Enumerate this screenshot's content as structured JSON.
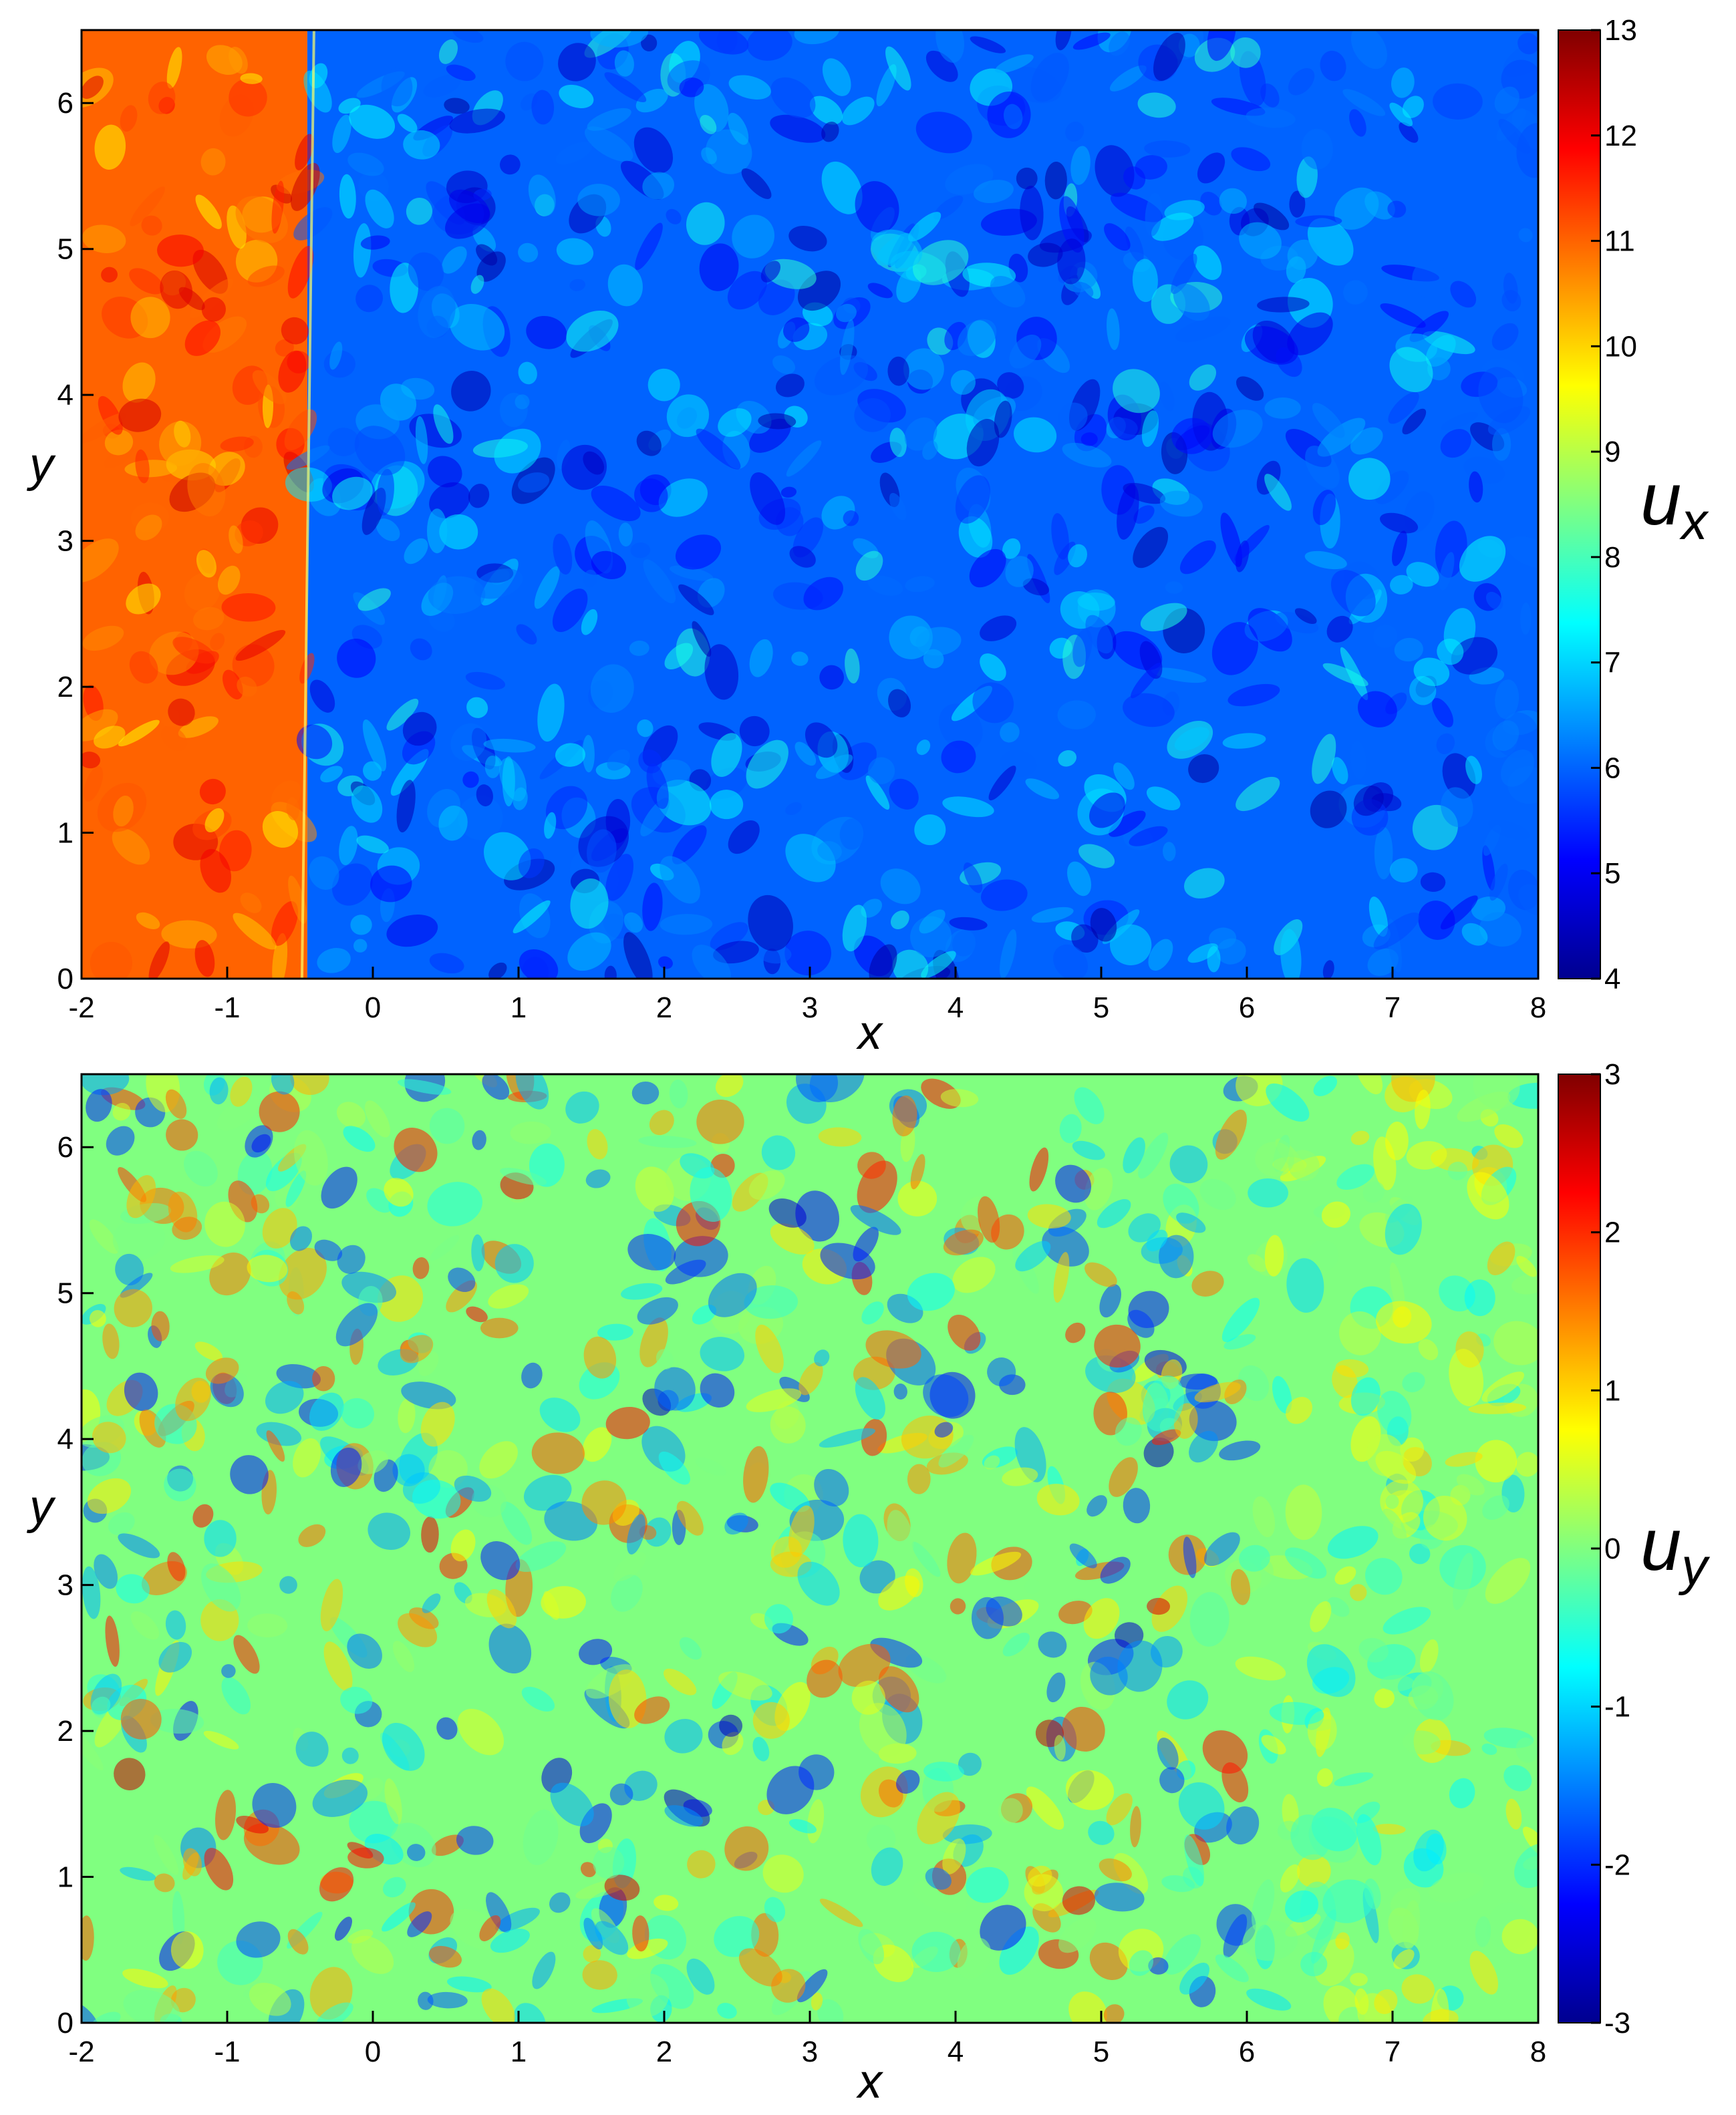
{
  "chart_data": [
    {
      "type": "heatmap",
      "field": "u_x",
      "xlabel": "x",
      "ylabel": "y",
      "xlim": [
        -2,
        8
      ],
      "ylim": [
        0,
        6.5
      ],
      "x_ticks": [
        "-2",
        "-1",
        "0",
        "1",
        "2",
        "3",
        "4",
        "5",
        "6",
        "7",
        "8"
      ],
      "y_ticks": [
        "0",
        "1",
        "2",
        "3",
        "4",
        "5",
        "6"
      ],
      "colorbar": {
        "label_main": "u",
        "label_sub": "x",
        "range": [
          4,
          13
        ],
        "ticks": [
          "4",
          "5",
          "6",
          "7",
          "8",
          "9",
          "10",
          "11",
          "12",
          "13"
        ]
      },
      "colormap": "jet",
      "shock_front_x": -0.45,
      "regions": [
        {
          "x_range": [
            -2,
            -0.45
          ],
          "mean_value": 11
        },
        {
          "x_range": [
            -0.45,
            8
          ],
          "mean_value": 6
        }
      ]
    },
    {
      "type": "heatmap",
      "field": "u_y",
      "xlabel": "x",
      "ylabel": "y",
      "xlim": [
        -2,
        8
      ],
      "ylim": [
        0,
        6.5
      ],
      "x_ticks": [
        "-2",
        "-1",
        "0",
        "1",
        "2",
        "3",
        "4",
        "5",
        "6",
        "7",
        "8"
      ],
      "y_ticks": [
        "0",
        "1",
        "2",
        "3",
        "4",
        "5",
        "6"
      ],
      "colorbar": {
        "label_main": "u",
        "label_sub": "y",
        "range": [
          -3,
          3
        ],
        "ticks": [
          "-3",
          "-2",
          "-1",
          "0",
          "1",
          "2",
          "3"
        ]
      },
      "colormap": "jet",
      "mean_value": 0
    }
  ]
}
